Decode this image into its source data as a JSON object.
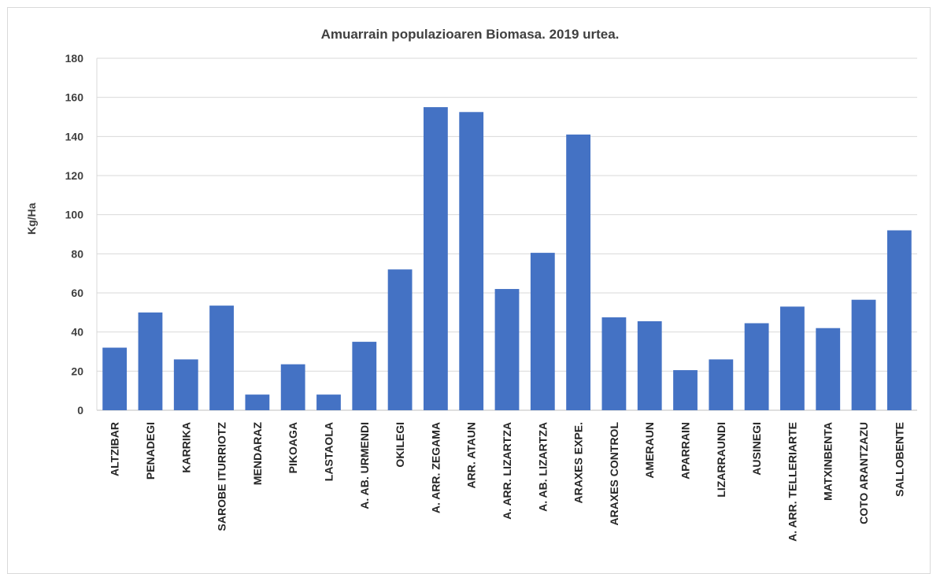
{
  "chart_data": {
    "type": "bar",
    "title": "Amuarrain populazioaren Biomasa. 2019 urtea.",
    "xlabel": "",
    "ylabel": "Kg/Ha",
    "ylim": [
      0,
      180
    ],
    "yticks": [
      0,
      20,
      40,
      60,
      80,
      100,
      120,
      140,
      160,
      180
    ],
    "grid": true,
    "bar_color": "#4472C4",
    "categories": [
      "ALTZIBAR",
      "PENADEGI",
      "KARRIKA",
      "SAROBE ITURRIOTZ",
      "MENDARAZ",
      "PIKOAGA",
      "LASTAOLA",
      "A. AB. URMENDI",
      "OKILEGI",
      "A. ARR. ZEGAMA",
      "ARR. ATAUN",
      "A. ARR. LIZARTZA",
      "A. AB. LIZARTZA",
      "ARAXES EXPE.",
      "ARAXES CONTROL",
      "AMERAUN",
      "APARRAIN",
      "LIZARRAUNDI",
      "AUSINEGI",
      "A. ARR. TELLERIARTE",
      "MATXINBENTA",
      "COTO ARANTZAZU",
      "SALLOBENTE"
    ],
    "values": [
      32,
      50,
      26,
      53.5,
      8,
      23.5,
      8,
      35,
      72,
      155,
      152.5,
      62,
      80.5,
      141,
      47.5,
      45.5,
      20.5,
      26,
      44.5,
      53,
      42,
      56.5,
      92
    ]
  }
}
